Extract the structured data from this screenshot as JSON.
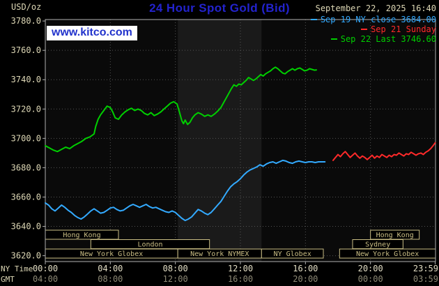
{
  "header": {
    "unit": "USD/oz",
    "title": "24 Hour Spot Gold (Bid)",
    "datetime": "September 22, 2025 16:40",
    "watermark": "www.kitco.com"
  },
  "colors": {
    "title_blue": "#2323cd",
    "watermark_blue": "#2233cc",
    "tan": "#ddd7b5",
    "axis_text": "#e2ddc4",
    "gmt_text": "#8e8a76",
    "session": "#c9bd84",
    "grid": "#545454",
    "frame": "#b0b0b0",
    "plot_bg": "#0a0a0a",
    "band": "#1a1a1a",
    "cyan": "#33aaff",
    "red": "#ff2a2a",
    "green": "#00cf00"
  },
  "legend": [
    {
      "label": "Sep 19 NY close 3684.00",
      "color": "#33aaff"
    },
    {
      "label": "Sep 21 Sunday",
      "color": "#ff2a2a"
    },
    {
      "label": "Sep 22 Last 3746.60",
      "color": "#00cf00"
    }
  ],
  "footer": {
    "ny_label": "NY Time",
    "gmt_label": "GMT"
  },
  "chart_data": {
    "type": "line",
    "title": "24 Hour Spot Gold (Bid)",
    "ylabel": "USD/oz",
    "x_range_hours": [
      0,
      24
    ],
    "y_range": [
      3616,
      3781
    ],
    "y_ticks": [
      3780,
      3760,
      3740,
      3720,
      3700,
      3680,
      3660,
      3640,
      3620
    ],
    "x_grid_hours": [
      4,
      8,
      12,
      16,
      20
    ],
    "ny_ticks": [
      {
        "h": 0,
        "label": "00:00"
      },
      {
        "h": 4,
        "label": "04:00"
      },
      {
        "h": 8,
        "label": "08:00"
      },
      {
        "h": 12,
        "label": "12:00"
      },
      {
        "h": 16,
        "label": "16:00"
      },
      {
        "h": 20,
        "label": "20:00"
      },
      {
        "h": 23.98,
        "label": "23:59",
        "anchor": "end"
      }
    ],
    "gmt_ticks": [
      {
        "h": 0,
        "label": "04:00"
      },
      {
        "h": 4,
        "label": "08:00"
      },
      {
        "h": 8,
        "label": "12:00"
      },
      {
        "h": 12,
        "label": "16:00"
      },
      {
        "h": 16,
        "label": "20:00"
      },
      {
        "h": 20,
        "label": "00:00"
      },
      {
        "h": 23.98,
        "label": "03:59",
        "anchor": "end"
      }
    ],
    "nymex_band": {
      "start": 8.15,
      "end": 13.3
    },
    "sessions": [
      {
        "row": 0,
        "name": "Hong Kong",
        "start": 0,
        "end": 4.5
      },
      {
        "row": 0,
        "name": "Hong Kong",
        "start": 20,
        "end": 23.0
      },
      {
        "row": 1,
        "name": "London",
        "start": 2.8,
        "end": 10.1
      },
      {
        "row": 1,
        "name": "Sydney",
        "start": 18.9,
        "end": 22.0
      },
      {
        "row": 2,
        "name": "New York Globex",
        "start": 0,
        "end": 8.15
      },
      {
        "row": 2,
        "name": "New York NYMEX",
        "start": 8.15,
        "end": 13.3
      },
      {
        "row": 2,
        "name": "NY Globex",
        "start": 13.3,
        "end": 17.1
      },
      {
        "row": 2,
        "name": "New York Globex",
        "start": 18.1,
        "end": 24
      }
    ],
    "series": [
      {
        "name": "Sep 19 NY close",
        "close_value": 3684.0,
        "color": "#33aaff",
        "points": [
          [
            0,
            3656
          ],
          [
            0.2,
            3654.5
          ],
          [
            0.4,
            3652
          ],
          [
            0.6,
            3650.5
          ],
          [
            0.8,
            3652.5
          ],
          [
            1,
            3654.5
          ],
          [
            1.2,
            3653
          ],
          [
            1.4,
            3651
          ],
          [
            1.6,
            3649.5
          ],
          [
            1.8,
            3647.5
          ],
          [
            2,
            3646
          ],
          [
            2.2,
            3645
          ],
          [
            2.4,
            3646.5
          ],
          [
            2.6,
            3648.5
          ],
          [
            2.8,
            3650.5
          ],
          [
            3,
            3652
          ],
          [
            3.2,
            3650.5
          ],
          [
            3.4,
            3649
          ],
          [
            3.6,
            3649.5
          ],
          [
            3.8,
            3651
          ],
          [
            4,
            3652.5
          ],
          [
            4.2,
            3653
          ],
          [
            4.4,
            3651.5
          ],
          [
            4.6,
            3650.5
          ],
          [
            4.8,
            3651
          ],
          [
            5,
            3652.5
          ],
          [
            5.2,
            3654
          ],
          [
            5.4,
            3655
          ],
          [
            5.6,
            3654
          ],
          [
            5.8,
            3653
          ],
          [
            6,
            3654
          ],
          [
            6.2,
            3655
          ],
          [
            6.4,
            3653.5
          ],
          [
            6.6,
            3652.5
          ],
          [
            6.8,
            3653
          ],
          [
            7,
            3652
          ],
          [
            7.2,
            3651
          ],
          [
            7.4,
            3650
          ],
          [
            7.6,
            3649.5
          ],
          [
            7.8,
            3650.5
          ],
          [
            8,
            3649.5
          ],
          [
            8.2,
            3647.5
          ],
          [
            8.4,
            3645.5
          ],
          [
            8.6,
            3644
          ],
          [
            8.8,
            3645
          ],
          [
            9,
            3646.5
          ],
          [
            9.2,
            3649
          ],
          [
            9.4,
            3651.5
          ],
          [
            9.6,
            3650.5
          ],
          [
            9.8,
            3649
          ],
          [
            10,
            3648
          ],
          [
            10.2,
            3649.5
          ],
          [
            10.4,
            3652
          ],
          [
            10.6,
            3654.5
          ],
          [
            10.8,
            3657
          ],
          [
            11,
            3660.5
          ],
          [
            11.2,
            3664
          ],
          [
            11.4,
            3667
          ],
          [
            11.6,
            3669
          ],
          [
            11.8,
            3670.5
          ],
          [
            12,
            3672.5
          ],
          [
            12.2,
            3675
          ],
          [
            12.4,
            3677
          ],
          [
            12.6,
            3678.5
          ],
          [
            12.8,
            3679.5
          ],
          [
            13,
            3680.5
          ],
          [
            13.2,
            3682
          ],
          [
            13.4,
            3681
          ],
          [
            13.6,
            3682.5
          ],
          [
            13.8,
            3683.5
          ],
          [
            14,
            3684
          ],
          [
            14.2,
            3683
          ],
          [
            14.4,
            3684
          ],
          [
            14.6,
            3685
          ],
          [
            14.8,
            3684.5
          ],
          [
            15,
            3683.5
          ],
          [
            15.2,
            3683
          ],
          [
            15.4,
            3684
          ],
          [
            15.6,
            3684.5
          ],
          [
            15.8,
            3684
          ],
          [
            16,
            3683.5
          ],
          [
            16.2,
            3684
          ],
          [
            16.4,
            3684
          ],
          [
            16.6,
            3683.5
          ],
          [
            16.8,
            3684
          ],
          [
            17,
            3684
          ],
          [
            17.2,
            3684
          ]
        ]
      },
      {
        "name": "Sep 21 Sunday",
        "color": "#ff2a2a",
        "points": [
          [
            17.7,
            3685
          ],
          [
            17.85,
            3687
          ],
          [
            18,
            3689
          ],
          [
            18.15,
            3687.5
          ],
          [
            18.3,
            3689.5
          ],
          [
            18.45,
            3691
          ],
          [
            18.6,
            3689
          ],
          [
            18.75,
            3687
          ],
          [
            18.9,
            3688.5
          ],
          [
            19.05,
            3690
          ],
          [
            19.2,
            3688
          ],
          [
            19.35,
            3686.5
          ],
          [
            19.5,
            3688
          ],
          [
            19.65,
            3687
          ],
          [
            19.8,
            3685.5
          ],
          [
            19.95,
            3687
          ],
          [
            20.1,
            3688.5
          ],
          [
            20.25,
            3686.5
          ],
          [
            20.4,
            3688
          ],
          [
            20.55,
            3687
          ],
          [
            20.7,
            3689
          ],
          [
            20.85,
            3688
          ],
          [
            21,
            3687
          ],
          [
            21.15,
            3688.5
          ],
          [
            21.3,
            3687.5
          ],
          [
            21.45,
            3689
          ],
          [
            21.6,
            3688.5
          ],
          [
            21.75,
            3690
          ],
          [
            21.9,
            3689
          ],
          [
            22.05,
            3688
          ],
          [
            22.2,
            3689.5
          ],
          [
            22.35,
            3689
          ],
          [
            22.5,
            3690.5
          ],
          [
            22.65,
            3689.5
          ],
          [
            22.8,
            3688.5
          ],
          [
            22.95,
            3689.5
          ],
          [
            23.1,
            3690
          ],
          [
            23.25,
            3689
          ],
          [
            23.4,
            3690.5
          ],
          [
            23.55,
            3691.5
          ],
          [
            23.7,
            3693
          ],
          [
            23.85,
            3695
          ],
          [
            23.98,
            3697
          ]
        ]
      },
      {
        "name": "Sep 22 Last",
        "last_value": 3746.6,
        "color": "#00cf00",
        "points": [
          [
            0,
            3695
          ],
          [
            0.25,
            3693.5
          ],
          [
            0.5,
            3692
          ],
          [
            0.75,
            3691
          ],
          [
            1,
            3692.5
          ],
          [
            1.25,
            3694
          ],
          [
            1.5,
            3693
          ],
          [
            1.75,
            3695
          ],
          [
            2,
            3696.5
          ],
          [
            2.25,
            3698
          ],
          [
            2.5,
            3700
          ],
          [
            2.75,
            3701
          ],
          [
            3,
            3703
          ],
          [
            3.1,
            3708
          ],
          [
            3.25,
            3713
          ],
          [
            3.4,
            3716
          ],
          [
            3.6,
            3719
          ],
          [
            3.8,
            3722
          ],
          [
            4,
            3721
          ],
          [
            4.15,
            3718
          ],
          [
            4.3,
            3714
          ],
          [
            4.5,
            3713
          ],
          [
            4.7,
            3716
          ],
          [
            4.9,
            3718
          ],
          [
            5.1,
            3719.5
          ],
          [
            5.3,
            3720.5
          ],
          [
            5.5,
            3719
          ],
          [
            5.7,
            3720
          ],
          [
            5.9,
            3719
          ],
          [
            6.1,
            3717
          ],
          [
            6.3,
            3716
          ],
          [
            6.5,
            3717.5
          ],
          [
            6.7,
            3715.5
          ],
          [
            6.9,
            3716.5
          ],
          [
            7.1,
            3718
          ],
          [
            7.3,
            3720
          ],
          [
            7.5,
            3722
          ],
          [
            7.7,
            3724
          ],
          [
            7.9,
            3725
          ],
          [
            8.1,
            3723.5
          ],
          [
            8.25,
            3718
          ],
          [
            8.4,
            3712
          ],
          [
            8.5,
            3710
          ],
          [
            8.6,
            3712.5
          ],
          [
            8.75,
            3709.5
          ],
          [
            8.9,
            3711
          ],
          [
            9.05,
            3714
          ],
          [
            9.2,
            3716
          ],
          [
            9.4,
            3717.5
          ],
          [
            9.6,
            3716.5
          ],
          [
            9.8,
            3715
          ],
          [
            10,
            3716
          ],
          [
            10.2,
            3715
          ],
          [
            10.4,
            3716.5
          ],
          [
            10.6,
            3718.5
          ],
          [
            10.8,
            3721
          ],
          [
            11,
            3725
          ],
          [
            11.15,
            3728
          ],
          [
            11.3,
            3731
          ],
          [
            11.45,
            3734
          ],
          [
            11.6,
            3736.5
          ],
          [
            11.75,
            3735.5
          ],
          [
            11.9,
            3737
          ],
          [
            12.05,
            3736.5
          ],
          [
            12.2,
            3738
          ],
          [
            12.35,
            3739.5
          ],
          [
            12.5,
            3741.5
          ],
          [
            12.65,
            3740.5
          ],
          [
            12.8,
            3739.5
          ],
          [
            12.95,
            3740.5
          ],
          [
            13.1,
            3742
          ],
          [
            13.25,
            3743.5
          ],
          [
            13.4,
            3742.5
          ],
          [
            13.55,
            3744
          ],
          [
            13.7,
            3745
          ],
          [
            13.85,
            3746
          ],
          [
            14,
            3747.5
          ],
          [
            14.15,
            3748.5
          ],
          [
            14.3,
            3747.5
          ],
          [
            14.45,
            3746
          ],
          [
            14.6,
            3744.5
          ],
          [
            14.75,
            3744
          ],
          [
            14.9,
            3745.5
          ],
          [
            15.05,
            3746.5
          ],
          [
            15.2,
            3747.5
          ],
          [
            15.35,
            3746.5
          ],
          [
            15.5,
            3747.5
          ],
          [
            15.65,
            3748
          ],
          [
            15.8,
            3747
          ],
          [
            15.95,
            3746
          ],
          [
            16.1,
            3746.5
          ],
          [
            16.25,
            3747.5
          ],
          [
            16.4,
            3747
          ],
          [
            16.55,
            3746.5
          ],
          [
            16.67,
            3746.6
          ]
        ]
      }
    ]
  }
}
